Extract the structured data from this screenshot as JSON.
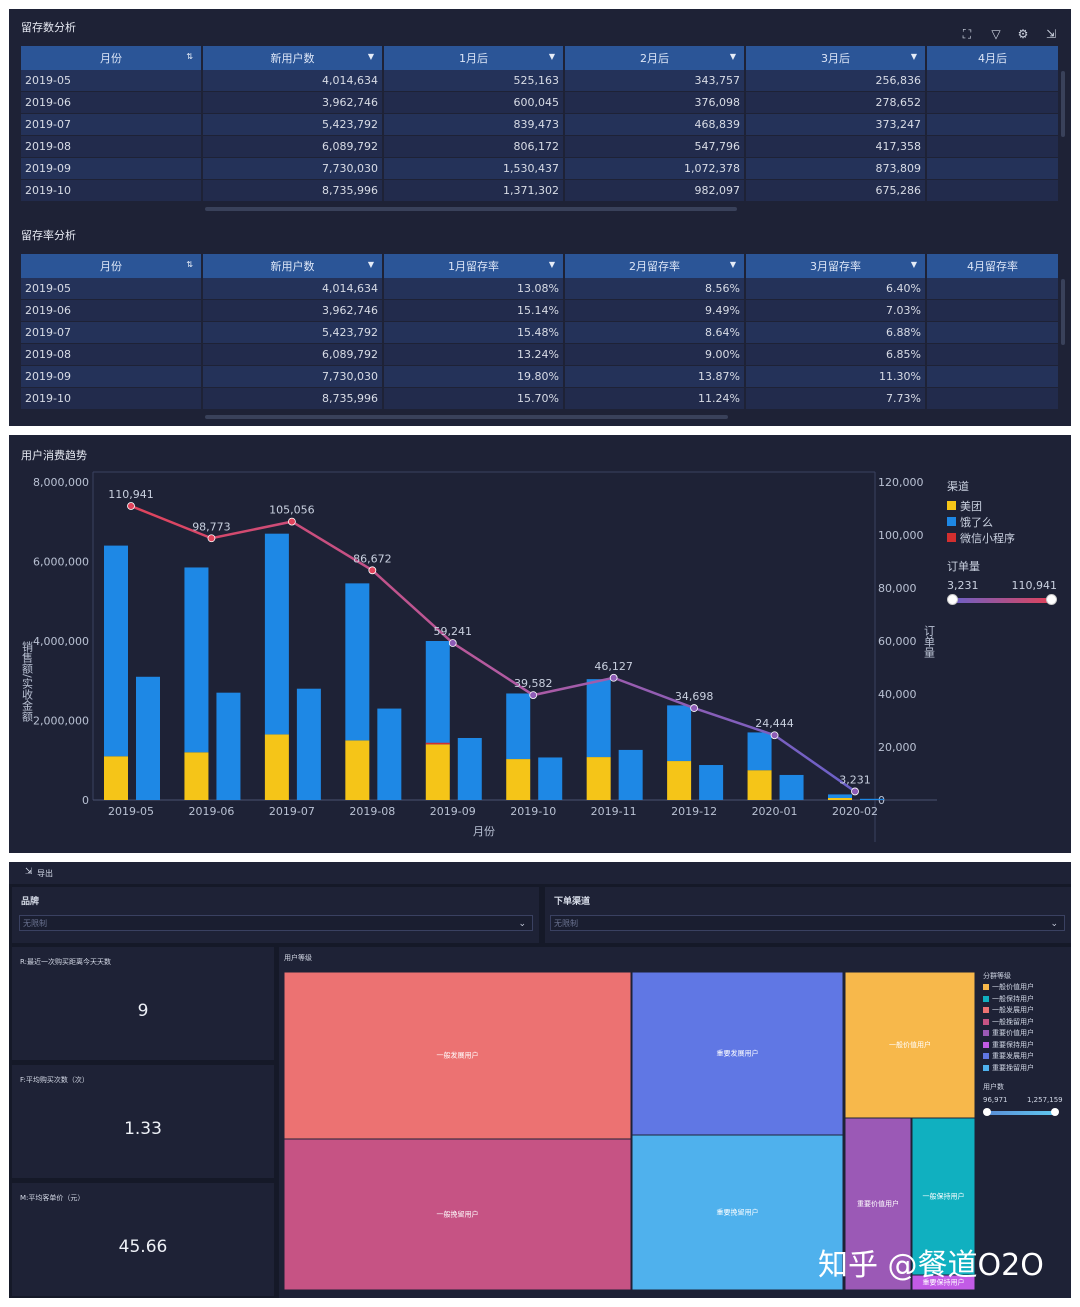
{
  "retention_count": {
    "title": "留存数分析",
    "columns": [
      "月份",
      "新用户数",
      "1月后",
      "2月后",
      "3月后",
      "4月后"
    ],
    "rows": [
      [
        "2019-05",
        "4,014,634",
        "525,163",
        "343,757",
        "256,836",
        ""
      ],
      [
        "2019-06",
        "3,962,746",
        "600,045",
        "376,098",
        "278,652",
        ""
      ],
      [
        "2019-07",
        "5,423,792",
        "839,473",
        "468,839",
        "373,247",
        ""
      ],
      [
        "2019-08",
        "6,089,792",
        "806,172",
        "547,796",
        "417,358",
        ""
      ],
      [
        "2019-09",
        "7,730,030",
        "1,530,437",
        "1,072,378",
        "873,809",
        ""
      ],
      [
        "2019-10",
        "8,735,996",
        "1,371,302",
        "982,097",
        "675,286",
        ""
      ]
    ]
  },
  "retention_rate": {
    "title": "留存率分析",
    "columns": [
      "月份",
      "新用户数",
      "1月留存率",
      "2月留存率",
      "3月留存率",
      "4月留存率"
    ],
    "rows": [
      [
        "2019-05",
        "4,014,634",
        "13.08%",
        "8.56%",
        "6.40%",
        ""
      ],
      [
        "2019-06",
        "3,962,746",
        "15.14%",
        "9.49%",
        "7.03%",
        ""
      ],
      [
        "2019-07",
        "5,423,792",
        "15.48%",
        "8.64%",
        "6.88%",
        ""
      ],
      [
        "2019-08",
        "6,089,792",
        "13.24%",
        "9.00%",
        "6.85%",
        ""
      ],
      [
        "2019-09",
        "7,730,030",
        "19.80%",
        "13.87%",
        "11.30%",
        ""
      ],
      [
        "2019-10",
        "8,735,996",
        "15.70%",
        "11.24%",
        "7.73%",
        ""
      ]
    ]
  },
  "chart_data": [
    {
      "type": "bar",
      "title": "用户消费趋势",
      "xlabel": "月份",
      "ylabel": "销售额/实收金额",
      "y2label": "订单量",
      "categories": [
        "2019-05",
        "2019-06",
        "2019-07",
        "2019-08",
        "2019-09",
        "2019-10",
        "2019-11",
        "2019-12",
        "2020-01",
        "2020-02"
      ],
      "ylim": [
        0,
        8000000
      ],
      "y2lim": [
        0,
        120000
      ],
      "yticks": [
        "0",
        "2,000,000",
        "4,000,000",
        "6,000,000",
        "8,000,000"
      ],
      "y2ticks": [
        "0",
        "20,000",
        "40,000",
        "60,000",
        "80,000",
        "100,000",
        "120,000"
      ],
      "series": [
        {
          "name": "销售额-美团",
          "values": [
            1100000,
            1200000,
            1650000,
            1500000,
            1400000,
            1030000,
            1080000,
            980000,
            750000,
            50000
          ]
        },
        {
          "name": "销售额-饿了么",
          "values": [
            5300000,
            4650000,
            5050000,
            3950000,
            2600000,
            1650000,
            1960000,
            1400000,
            950000,
            90000
          ]
        },
        {
          "name": "销售额-微信小程序",
          "values": [
            0,
            0,
            0,
            0,
            40000,
            0,
            0,
            0,
            0,
            0
          ]
        },
        {
          "name": "实收金额",
          "values": [
            3100000,
            2700000,
            2800000,
            2300000,
            1560000,
            1070000,
            1260000,
            880000,
            630000,
            30000
          ]
        },
        {
          "name": "订单量",
          "values": [
            110941,
            98773,
            105056,
            86672,
            59241,
            39582,
            46127,
            34698,
            24444,
            3231
          ]
        }
      ],
      "legend": {
        "title": "渠道",
        "items": [
          {
            "name": "美团",
            "color": "#f5c518"
          },
          {
            "name": "饿了么",
            "color": "#1e88e5"
          },
          {
            "name": "微信小程序",
            "color": "#d32f2f"
          }
        ],
        "range_title": "订单量",
        "range_min": "3,231",
        "range_max": "110,941"
      }
    },
    {
      "type": "heatmap",
      "title": "用户等级",
      "tiles": [
        {
          "name": "一般发展用户",
          "color": "#ec7272"
        },
        {
          "name": "一般挽留用户",
          "color": "#c65384"
        },
        {
          "name": "重要发展用户",
          "color": "#6077e4"
        },
        {
          "name": "重要挽留用户",
          "color": "#4fb1ed"
        },
        {
          "name": "一般价值用户",
          "color": "#f7b84b"
        },
        {
          "name": "重要价值用户",
          "color": "#9b59b6"
        },
        {
          "name": "一般保持用户",
          "color": "#10b0c0"
        },
        {
          "name": "重要保持用户",
          "color": "#c25be6"
        }
      ],
      "legend": {
        "title": "分群等级",
        "items": [
          {
            "name": "一般价值用户",
            "color": "#f7b84b"
          },
          {
            "name": "一般保持用户",
            "color": "#10b0c0"
          },
          {
            "name": "一般发展用户",
            "color": "#ec7272"
          },
          {
            "name": "一般挽留用户",
            "color": "#c65384"
          },
          {
            "name": "重要价值用户",
            "color": "#9b59b6"
          },
          {
            "name": "重要保持用户",
            "color": "#c25be6"
          },
          {
            "name": "重要发展用户",
            "color": "#6077e4"
          },
          {
            "name": "重要挽留用户",
            "color": "#4fb1ed"
          }
        ],
        "range_title": "用户数",
        "range_min": "96,971",
        "range_max": "1,257,159"
      }
    }
  ],
  "filters": {
    "export_label": "导出",
    "brand_label": "品牌",
    "brand_value": "无限制",
    "channel_label": "下单渠道",
    "channel_value": "无限制"
  },
  "kpis": [
    {
      "label": "R:最近一次购买距离今天天数",
      "value": "9"
    },
    {
      "label": "F:平均购买次数（次）",
      "value": "1.33"
    },
    {
      "label": "M:平均客单价（元）",
      "value": "45.66"
    }
  ],
  "watermark": "知乎 @餐道O2O"
}
